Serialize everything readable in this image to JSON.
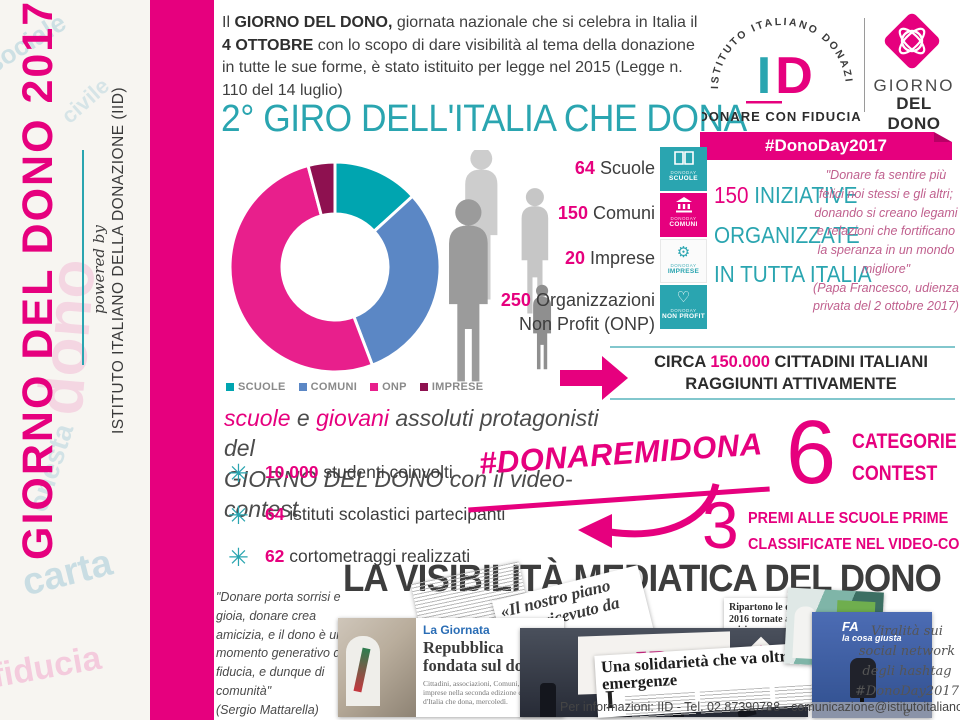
{
  "sidebar": {
    "title": "GIORNO DEL DONO 2017",
    "powered_by": "powered by",
    "org": "ISTITUTO ITALIANO DELLA DONAZIONE (IID)",
    "watermarks": [
      "sociale",
      "civile",
      "dono",
      "onesta",
      "carta",
      "fiducia"
    ]
  },
  "intro": {
    "p1": "Il ",
    "b1": "GIORNO DEL DONO,",
    "p2": " giornata nazionale che si celebra in Italia il ",
    "b2": "4 OTTOBRE",
    "p3": " con lo scopo di dare visibilità al tema della donazione in tutte le sue forme, è stato istituito per legge nel 2015 (Legge n. 110 del 14 luglio)"
  },
  "main_title": "2° GIRO DELL'ITALIA CHE DONA",
  "logos": {
    "iid_arc": "ISTITUTO ITALIANO DONAZIONE",
    "iid_monogram_i": "I",
    "iid_monogram_d": "D",
    "iid_tagline": "DONARE CON FIDUCIA",
    "gdd_name_1": "GIORNO",
    "gdd_name_2": "DEL DONO",
    "ribbon": "#DonoDay2017"
  },
  "chart_data": {
    "type": "donut",
    "title": "2° GIRO DELL'ITALIA CHE DONA",
    "categories": [
      "SCUOLE",
      "COMUNI",
      "ONP",
      "IMPRESE"
    ],
    "values": [
      64,
      150,
      250,
      20
    ],
    "colors": [
      "#00a5b0",
      "#5b87c5",
      "#e81f8c",
      "#8e1150"
    ],
    "legend": [
      "SCUOLE",
      "COMUNI",
      "ONP",
      "IMPRESE"
    ],
    "legend_position": "bottom",
    "start_angle_deg": -90,
    "direction": "clockwise"
  },
  "stats": [
    {
      "value": "64",
      "label": " Scuole"
    },
    {
      "value": "150",
      "label": " Comuni"
    },
    {
      "value": "20",
      "label": " Imprese"
    },
    {
      "value": "250",
      "label": " Organizzazioni Non Profit (ONP)"
    }
  ],
  "badges": [
    {
      "small": "DONODAY",
      "label": "SCUOLE"
    },
    {
      "small": "DONODAY",
      "label": "COMUNI"
    },
    {
      "small": "DONODAY",
      "label": "IMPRESE"
    },
    {
      "small": "DONODAY",
      "label": "NON PROFIT"
    }
  ],
  "iniziative": {
    "value": "150",
    "rest1": " INIZIATIVE",
    "line2": "ORGANIZZATE",
    "line3": "IN TUTTA ITALIA"
  },
  "papa_quote": {
    "text": "\"Donare fa sentire più felici noi stessi e gli altri; donando si creano legami e relazioni che fortificano la speranza in un mondo migliore\"",
    "attribution": "(Papa Francesco, udienza privata del 2 ottobre 2017)"
  },
  "reach": {
    "pre": "CIRCA ",
    "value": "150.000",
    "post": " CITTADINI ITALIANI",
    "line2": "RAGGIUNTI ATTIVAMENTE"
  },
  "protagonists": {
    "m1": "scuole",
    "t1": " e ",
    "m2": "giovani",
    "t2": " assoluti protagonisti del",
    "t3": "GIORNO DEL DONO",
    "t4": " con il video-contest"
  },
  "bullets": [
    {
      "icon": "asterisk-icon",
      "value": "10.000",
      "label": " studenti coinvolti"
    },
    {
      "icon": "asterisk-icon",
      "value": "64",
      "label": " istituti scolastici partecipanti"
    },
    {
      "icon": "asterisk-icon",
      "value": "62",
      "label": " cortometraggi realizzati"
    }
  ],
  "hashtag": "#DONAREMIDONA",
  "contest": {
    "num_categories": "6",
    "cat_line1": "CATEGORIE",
    "cat_line2": "CONTEST",
    "num_prizes": "3",
    "premi_line1": "PREMI ALLE SCUOLE PRIME",
    "premi_line2": "CLASSIFICATE NEL VIDEO-CONTEST"
  },
  "media_title": "LA VISIBILITÀ MEDIATICA DEL DONO",
  "mattarella_quote": {
    "text": "\"Donare porta sorrisi e gioia, donare crea amicizia, e il dono è un momento generativo di fiducia, e dunque di comunità\"",
    "attribution": "(Sergio Mattarella)"
  },
  "collage": {
    "quote_clipping": "«Il nostro piano dono ricevuto da con…",
    "giornata_kicker": "La Giornata",
    "giornata_headline": "Repubblica fondata sul dono",
    "giornata_body": "Cittadini, associazioni, Comuni, scuole e imprese nella seconda edizione del Giro d'Italia che dona, mercoledì.",
    "stage_logo": "ID",
    "ripartono_headline": "Ripartono le donazioni nel 2016 tornate ai livelli pre crisi",
    "solidarieta_headline": "Una solidarietà che va oltre le emergenze",
    "solidarieta_dropcap": "I",
    "tv2_caption_big": "FA",
    "tv2_caption_small": "la cosa giusta"
  },
  "social_note": "Viralità sui social network degli hashtag #DonoDay2017 e #DonareMiDona",
  "footer": "Per informazioni: IID - Tel. 02.87390788 - comunicazione@istitutoitalianodonazione.it",
  "colors": {
    "accent": "#e6007e",
    "teal": "#2aa5b0",
    "blue": "#5b87c5",
    "maroon": "#8e1150",
    "dark": "#3d3d3d"
  }
}
